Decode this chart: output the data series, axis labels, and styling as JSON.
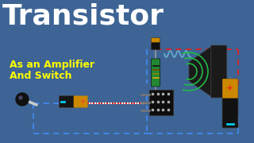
{
  "bg_color": "#3d6494",
  "title": "Transistor",
  "subtitle_line1": "As an Amplifier",
  "subtitle_line2": "And Switch",
  "title_color": "white",
  "subtitle_color": "#ffff00",
  "title_fontsize": 26,
  "subtitle_fontsize": 9,
  "dashed_blue": "#4488ee",
  "dashed_red": "#dd2222",
  "chain_red": "#cc2222",
  "chain_white": "#ffffff"
}
